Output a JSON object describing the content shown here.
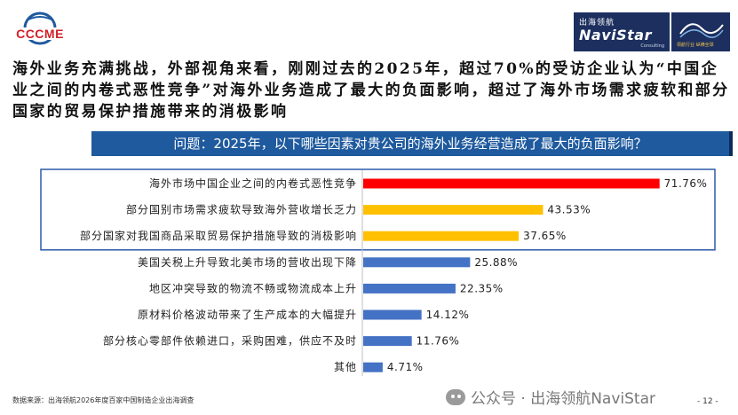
{
  "header": {
    "left_logo_text": "CCCME",
    "right_logo": {
      "cn_text": "出海领航",
      "en_text": "NaviStar",
      "sub_text": "Consulting",
      "slogan": "领航行业 纵横全球"
    }
  },
  "headline": "海外业务充满挑战，外部视角来看，刚刚过去的2025年，超过70%的受访企业认为“中国企业之间的内卷式恶性竞争”对海外业务造成了最大的负面影响，超过了海外市场需求疲软和部分国家的贸易保护措施带来的消极影响",
  "question": "问题：2025年，以下哪些因素对贵公司的海外业务经营造成了最大的负面影响？",
  "chart_data": {
    "type": "bar",
    "orientation": "horizontal",
    "categories": [
      "海外市场中国企业之间的内卷式恶性竞争",
      "部分国别市场需求疲软导致海外营收增长乏力",
      "部分国家对我国商品采取贸易保护措施导致的消极影响",
      "美国关税上升导致北美市场的营收出现下降",
      "地区冲突导致的物流不畅或物流成本上升",
      "原材料价格波动带来了生产成本的大幅提升",
      "部分核心零部件依赖进口，采购困难，供应不及时",
      "其他"
    ],
    "values": [
      71.76,
      43.53,
      37.65,
      25.88,
      22.35,
      14.12,
      11.76,
      4.71
    ],
    "value_labels": [
      "71.76%",
      "43.53%",
      "37.65%",
      "25.88%",
      "22.35%",
      "14.12%",
      "11.76%",
      "4.71%"
    ],
    "bar_colors": [
      "#ff0000",
      "#ffc000",
      "#ffc000",
      "#4472c4",
      "#4472c4",
      "#4472c4",
      "#4472c4",
      "#4472c4"
    ],
    "highlight_box_categories": 3,
    "highlight_color": "#2e5aa8",
    "xlim": [
      0,
      100
    ],
    "grid": false,
    "title": "",
    "xlabel": "",
    "ylabel": ""
  },
  "footer": {
    "source": "数据来源：出海领航2026年度百家中国制造企业出海调查",
    "watermark": "公众号 · 出海领航NaviStar",
    "page_number": "- 12 -"
  }
}
